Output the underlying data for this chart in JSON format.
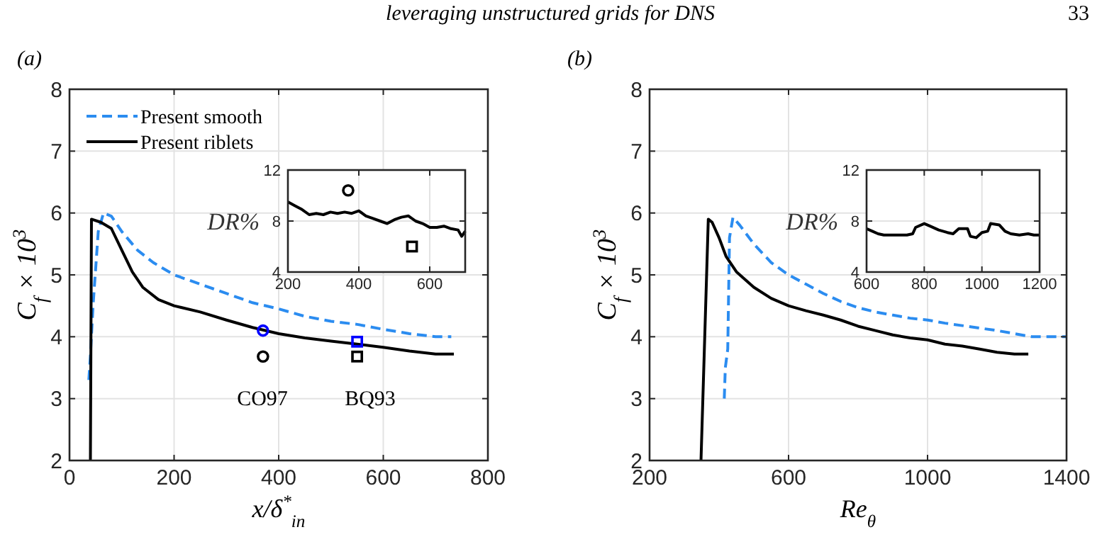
{
  "chart_data": [
    {
      "type": "line",
      "xlabel": "x/δ$^{*}$$_{in}$",
      "ylabel": "C$_{f}$ × 10$^{3}$",
      "xlim": [
        0,
        800
      ],
      "xticks": [
        0,
        200,
        400,
        600,
        800
      ],
      "ylim": [
        2,
        8
      ],
      "yticks": [
        2,
        3,
        4,
        5,
        6,
        7,
        8
      ],
      "grid": true,
      "legend": "top left",
      "annotations": [
        "(a)",
        "leveraging unstructured grids for DNS",
        "33",
        "CO97",
        "BQ93"
      ],
      "series": [
        {
          "name": "Present smooth",
          "color": "#2b8cf0",
          "line_style": "dashed",
          "x": [
            37,
            40,
            45,
            55,
            65,
            80,
            100,
            130,
            160,
            200,
            250,
            300,
            350,
            400,
            450,
            500,
            550,
            600,
            650,
            700,
            730
          ],
          "values": [
            3.3,
            3.7,
            4.5,
            5.7,
            6.0,
            5.95,
            5.7,
            5.4,
            5.2,
            5.0,
            4.85,
            4.7,
            4.55,
            4.45,
            4.33,
            4.25,
            4.2,
            4.12,
            4.05,
            4.0,
            4.0
          ]
        },
        {
          "name": "Present riblets",
          "color": "#000000",
          "line_style": "solid",
          "x": [
            40,
            42,
            60,
            80,
            100,
            120,
            140,
            170,
            200,
            250,
            300,
            350,
            400,
            450,
            500,
            550,
            600,
            650,
            700,
            735
          ],
          "values": [
            2,
            5.9,
            5.85,
            5.75,
            5.4,
            5.05,
            4.8,
            4.6,
            4.5,
            4.4,
            4.27,
            4.15,
            4.05,
            3.98,
            3.93,
            3.88,
            3.83,
            3.77,
            3.72,
            3.72
          ]
        },
        {
          "type": "scatter",
          "marker": "circle",
          "color": "#0000ff",
          "x": [
            370
          ],
          "values": [
            4.1
          ]
        },
        {
          "type": "scatter",
          "marker": "circle",
          "color": "#000000",
          "x": [
            370
          ],
          "values": [
            3.68
          ]
        },
        {
          "type": "scatter",
          "marker": "square",
          "color": "#0000ff",
          "x": [
            550
          ],
          "values": [
            3.92
          ]
        },
        {
          "type": "scatter",
          "marker": "square",
          "color": "#000000",
          "x": [
            550
          ],
          "values": [
            3.68
          ]
        }
      ]
    },
    {
      "type": "line",
      "ylabel": "DR%",
      "xlim": [
        200,
        700
      ],
      "xticks": [
        200,
        400,
        600
      ],
      "ylim": [
        4,
        12
      ],
      "yticks": [
        4,
        8,
        12
      ],
      "grid": true,
      "series": [
        {
          "color": "#000000",
          "line_style": "solid",
          "x": [
            200,
            220,
            240,
            260,
            280,
            300,
            320,
            340,
            360,
            380,
            400,
            420,
            440,
            460,
            480,
            500,
            520,
            540,
            560,
            580,
            600,
            620,
            640,
            660,
            680,
            690,
            700
          ],
          "values": [
            9.5,
            9.2,
            8.9,
            8.5,
            8.6,
            8.5,
            8.7,
            8.6,
            8.7,
            8.6,
            8.8,
            8.4,
            8.2,
            8.0,
            7.8,
            8.1,
            8.3,
            8.4,
            8.0,
            7.8,
            7.5,
            7.5,
            7.6,
            7.4,
            7.3,
            6.8,
            7.2
          ]
        },
        {
          "type": "scatter",
          "marker": "circle",
          "color": "#000000",
          "x": [
            370
          ],
          "values": [
            10.4
          ]
        },
        {
          "type": "scatter",
          "marker": "square",
          "color": "#000000",
          "x": [
            550
          ],
          "values": [
            6.0
          ]
        }
      ]
    },
    {
      "type": "line",
      "xlabel": "Re$_{θ}$",
      "ylabel": "C$_{f}$ × 10$^{3}$",
      "xlim": [
        200,
        1400
      ],
      "xticks": [
        200,
        600,
        1000,
        1400
      ],
      "ylim": [
        2,
        8
      ],
      "yticks": [
        2,
        3,
        4,
        5,
        6,
        7,
        8
      ],
      "grid": true,
      "annotations": [
        "(b)"
      ],
      "series": [
        {
          "color": "#2b8cf0",
          "line_style": "dashed",
          "x": [
            415,
            418,
            425,
            430,
            440,
            460,
            500,
            550,
            600,
            650,
            700,
            750,
            800,
            850,
            900,
            950,
            1000,
            1050,
            1100,
            1150,
            1200,
            1250,
            1300,
            1400
          ],
          "values": [
            3.0,
            3.5,
            3.8,
            5.6,
            5.93,
            5.8,
            5.5,
            5.2,
            5.0,
            4.85,
            4.7,
            4.57,
            4.47,
            4.4,
            4.35,
            4.3,
            4.27,
            4.22,
            4.18,
            4.14,
            4.1,
            4.05,
            4.0,
            4.0
          ]
        },
        {
          "color": "#000000",
          "line_style": "solid",
          "x": [
            348,
            369,
            380,
            400,
            420,
            450,
            500,
            550,
            600,
            650,
            700,
            750,
            800,
            850,
            900,
            950,
            1000,
            1050,
            1100,
            1150,
            1200,
            1250,
            1290
          ],
          "values": [
            2,
            5.9,
            5.85,
            5.6,
            5.3,
            5.05,
            4.8,
            4.62,
            4.5,
            4.42,
            4.35,
            4.27,
            4.17,
            4.1,
            4.03,
            3.98,
            3.95,
            3.88,
            3.85,
            3.8,
            3.75,
            3.72,
            3.72
          ]
        }
      ]
    },
    {
      "type": "line",
      "ylabel": "DR%",
      "xlim": [
        600,
        1200
      ],
      "xticks": [
        600,
        800,
        1000,
        1200
      ],
      "ylim": [
        4,
        12
      ],
      "yticks": [
        4,
        8,
        12
      ],
      "grid": true,
      "series": [
        {
          "color": "#000000",
          "line_style": "solid",
          "x": [
            600,
            620,
            640,
            660,
            700,
            740,
            760,
            770,
            800,
            820,
            850,
            880,
            900,
            920,
            950,
            960,
            980,
            1000,
            1020,
            1030,
            1060,
            1080,
            1100,
            1130,
            1160,
            1180,
            1200
          ],
          "values": [
            7.4,
            7.2,
            7.0,
            6.9,
            6.9,
            6.9,
            7.0,
            7.5,
            7.8,
            7.6,
            7.3,
            7.1,
            7.0,
            7.4,
            7.4,
            6.8,
            6.7,
            7.1,
            7.2,
            7.8,
            7.7,
            7.2,
            7.0,
            6.9,
            7.0,
            6.9,
            6.9
          ]
        }
      ]
    }
  ]
}
